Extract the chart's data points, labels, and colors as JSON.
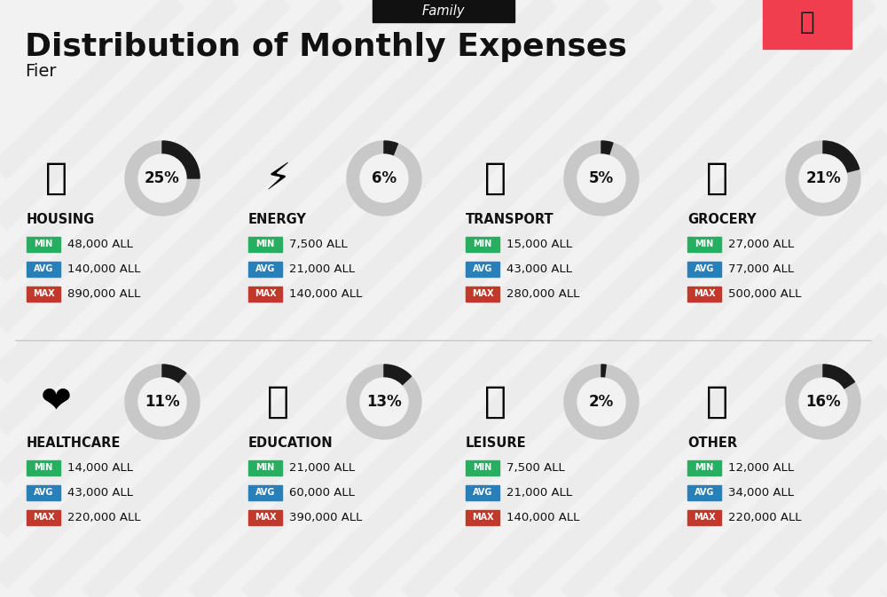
{
  "title": "Distribution of Monthly Expenses",
  "subtitle": "Family",
  "city": "Fier",
  "background_color": "#f2f2f2",
  "categories": [
    {
      "name": "HOUSING",
      "pct": 25,
      "min": "48,000 ALL",
      "avg": "140,000 ALL",
      "max": "890,000 ALL",
      "col": 0,
      "row": 0,
      "icon": "🏗"
    },
    {
      "name": "ENERGY",
      "pct": 6,
      "min": "7,500 ALL",
      "avg": "21,000 ALL",
      "max": "140,000 ALL",
      "col": 1,
      "row": 0,
      "icon": "⚡"
    },
    {
      "name": "TRANSPORT",
      "pct": 5,
      "min": "15,000 ALL",
      "avg": "43,000 ALL",
      "max": "280,000 ALL",
      "col": 2,
      "row": 0,
      "icon": "🚌"
    },
    {
      "name": "GROCERY",
      "pct": 21,
      "min": "27,000 ALL",
      "avg": "77,000 ALL",
      "max": "500,000 ALL",
      "col": 3,
      "row": 0,
      "icon": "🛒"
    },
    {
      "name": "HEALTHCARE",
      "pct": 11,
      "min": "14,000 ALL",
      "avg": "43,000 ALL",
      "max": "220,000 ALL",
      "col": 0,
      "row": 1,
      "icon": "❤️"
    },
    {
      "name": "EDUCATION",
      "pct": 13,
      "min": "21,000 ALL",
      "avg": "60,000 ALL",
      "max": "390,000 ALL",
      "col": 1,
      "row": 1,
      "icon": "🎓"
    },
    {
      "name": "LEISURE",
      "pct": 2,
      "min": "7,500 ALL",
      "avg": "21,000 ALL",
      "max": "140,000 ALL",
      "col": 2,
      "row": 1,
      "icon": "🛍️"
    },
    {
      "name": "OTHER",
      "pct": 16,
      "min": "12,000 ALL",
      "avg": "34,000 ALL",
      "max": "220,000 ALL",
      "col": 3,
      "row": 1,
      "icon": "💰"
    }
  ],
  "min_color": "#27ae60",
  "avg_color": "#2980b9",
  "max_color": "#c0392b",
  "label_color": "#ffffff",
  "title_color": "#111111",
  "subtitle_bg": "#111111",
  "subtitle_fg": "#ffffff",
  "donut_track_color": "#c8c8c8",
  "donut_fill_color": "#1a1a1a",
  "donut_center_color": "#f2f2f2",
  "flag_red": "#f03e4e",
  "stripe_color": "#e8e8e8"
}
